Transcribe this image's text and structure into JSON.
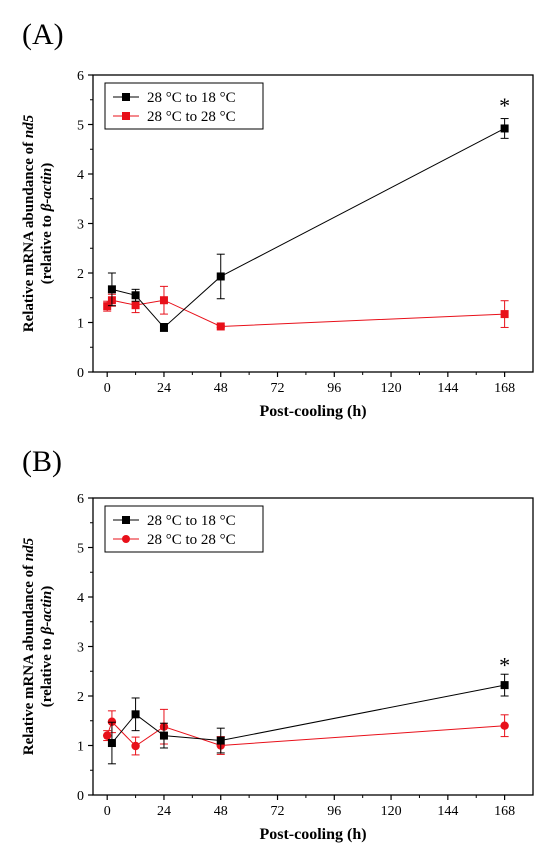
{
  "chart_data": [
    {
      "type": "line",
      "panel_label": "(A)",
      "xlabel": "Post-cooling (h)",
      "ylabel_line1": "Relative mRNA abundance of ",
      "ylabel_gene": "nd5",
      "ylabel_line2_pre": "(relative to ",
      "ylabel_ref": "β-actin",
      "ylabel_line2_post": ")",
      "xlim": [
        -6,
        180
      ],
      "ylim": [
        0,
        6
      ],
      "xticks": [
        0,
        24,
        48,
        72,
        96,
        120,
        144,
        168
      ],
      "yticks": [
        0,
        1,
        2,
        3,
        4,
        5,
        6
      ],
      "grid": false,
      "legend_position": "top-left",
      "annotations": [
        {
          "text": "*",
          "x": 168,
          "y": 5.35
        }
      ],
      "series": [
        {
          "name": "28 °C to 18 °C",
          "color": "#000000",
          "marker": "square",
          "x": [
            2,
            12,
            24,
            48,
            168
          ],
          "y": [
            1.67,
            1.55,
            0.9,
            1.93,
            4.92
          ],
          "err": [
            0.33,
            0.12,
            0.08,
            0.45,
            0.2
          ]
        },
        {
          "name": "28 °C to 28 °C",
          "color": "#e8101a",
          "marker": "square",
          "x": [
            0,
            2,
            12,
            24,
            48,
            168
          ],
          "y": [
            1.33,
            1.45,
            1.35,
            1.45,
            0.92,
            1.17
          ],
          "err": [
            0.1,
            0.12,
            0.15,
            0.28,
            0.02,
            0.27
          ]
        }
      ]
    },
    {
      "type": "line",
      "panel_label": "(B)",
      "xlabel": "Post-cooling (h)",
      "ylabel_line1": "Relative mRNA abundance of ",
      "ylabel_gene": "nd5",
      "ylabel_line2_pre": "(relative to ",
      "ylabel_ref": "β-actin",
      "ylabel_line2_post": ")",
      "xlim": [
        -6,
        180
      ],
      "ylim": [
        0,
        6
      ],
      "xticks": [
        0,
        24,
        48,
        72,
        96,
        120,
        144,
        168
      ],
      "yticks": [
        0,
        1,
        2,
        3,
        4,
        5,
        6
      ],
      "grid": false,
      "legend_position": "top-left",
      "annotations": [
        {
          "text": "*",
          "x": 168,
          "y": 2.6
        }
      ],
      "series": [
        {
          "name": "28 °C to 18 °C",
          "color": "#000000",
          "marker": "square",
          "x": [
            2,
            12,
            24,
            48,
            168
          ],
          "y": [
            1.05,
            1.63,
            1.2,
            1.1,
            2.22
          ],
          "err": [
            0.42,
            0.33,
            0.25,
            0.25,
            0.22
          ]
        },
        {
          "name": "28 °C to 28 °C",
          "color": "#e8101a",
          "marker": "circle",
          "x": [
            0,
            2,
            12,
            24,
            48,
            168
          ],
          "y": [
            1.2,
            1.48,
            0.99,
            1.38,
            1.0,
            1.4
          ],
          "err": [
            0.1,
            0.22,
            0.18,
            0.35,
            0.18,
            0.22
          ]
        }
      ]
    }
  ]
}
